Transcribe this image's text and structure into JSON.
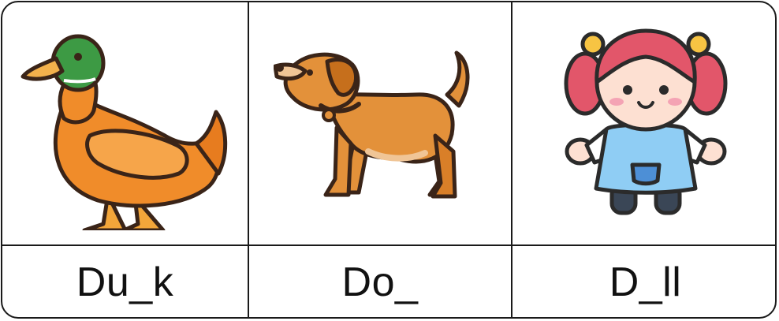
{
  "cards": [
    {
      "word": "Du_k",
      "icon": "duck-icon"
    },
    {
      "word": "Do_",
      "icon": "dog-icon"
    },
    {
      "word": "D_ll",
      "icon": "doll-icon"
    }
  ]
}
